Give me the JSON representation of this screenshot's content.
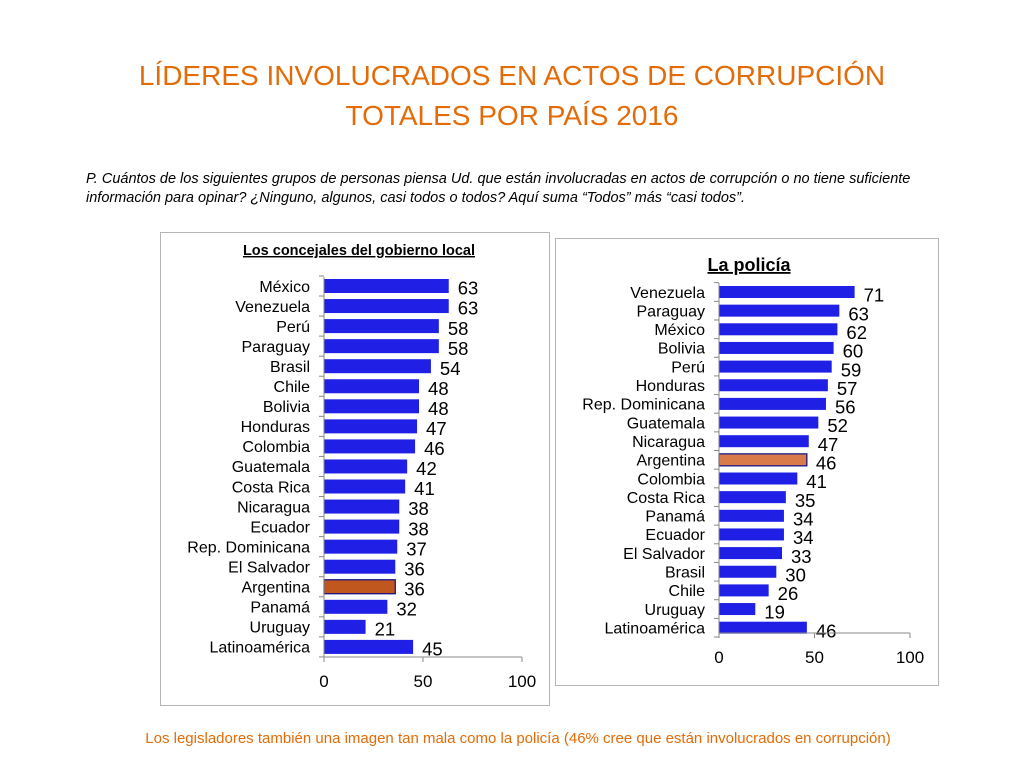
{
  "slide": {
    "title_line1": "LÍDERES INVOLUCRADOS EN ACTOS DE CORRUPCIÓN",
    "title_line2": "TOTALES POR PAÍS 2016",
    "question": "P. Cuántos de los siguientes grupos de personas piensa Ud. que están involucradas en actos de corrupción o no tiene suficiente información para opinar? ¿Ninguno, algunos, casi todos o todos? Aquí suma “Todos” más “casi todos”.",
    "footer": "Los legisladores también una imagen tan mala como la policía (46% cree que están involucrados en corrupción)"
  },
  "colors": {
    "title": "#e36c09",
    "bar": "#1f1fe6",
    "bar_border": "#0a0a8a",
    "highlight_left": "#c0571e",
    "highlight_right": "#d87a4a",
    "axis": "#888888"
  },
  "chart_data": [
    {
      "type": "bar",
      "orientation": "horizontal",
      "title": "Los concejales del gobierno local",
      "categories": [
        "México",
        "Venezuela",
        "Perú",
        "Paraguay",
        "Brasil",
        "Chile",
        "Bolivia",
        "Honduras",
        "Colombia",
        "Guatemala",
        "Costa Rica",
        "Nicaragua",
        "Ecuador",
        "Rep. Dominicana",
        "El Salvador",
        "Argentina",
        "Panamá",
        "Uruguay",
        "Latinoamérica"
      ],
      "values": [
        63,
        63,
        58,
        58,
        54,
        48,
        48,
        47,
        46,
        42,
        41,
        38,
        38,
        37,
        36,
        36,
        32,
        21,
        45
      ],
      "highlight": "Argentina",
      "xlim": [
        0,
        100
      ],
      "xticks": [
        0,
        50,
        100
      ],
      "xlabel": "",
      "ylabel": ""
    },
    {
      "type": "bar",
      "orientation": "horizontal",
      "title": "La policía",
      "categories": [
        "Venezuela",
        "Paraguay",
        "México",
        "Bolivia",
        "Perú",
        "Honduras",
        "Rep. Dominicana",
        "Guatemala",
        "Nicaragua",
        "Argentina",
        "Colombia",
        "Costa Rica",
        "Panamá",
        "Ecuador",
        "El Salvador",
        "Brasil",
        "Chile",
        "Uruguay",
        "Latinoamérica"
      ],
      "values": [
        71,
        63,
        62,
        60,
        59,
        57,
        56,
        52,
        47,
        46,
        41,
        35,
        34,
        34,
        33,
        30,
        26,
        19,
        46
      ],
      "highlight": "Argentina",
      "xlim": [
        0,
        100
      ],
      "xticks": [
        0,
        50,
        100
      ],
      "xlabel": "",
      "ylabel": ""
    }
  ]
}
